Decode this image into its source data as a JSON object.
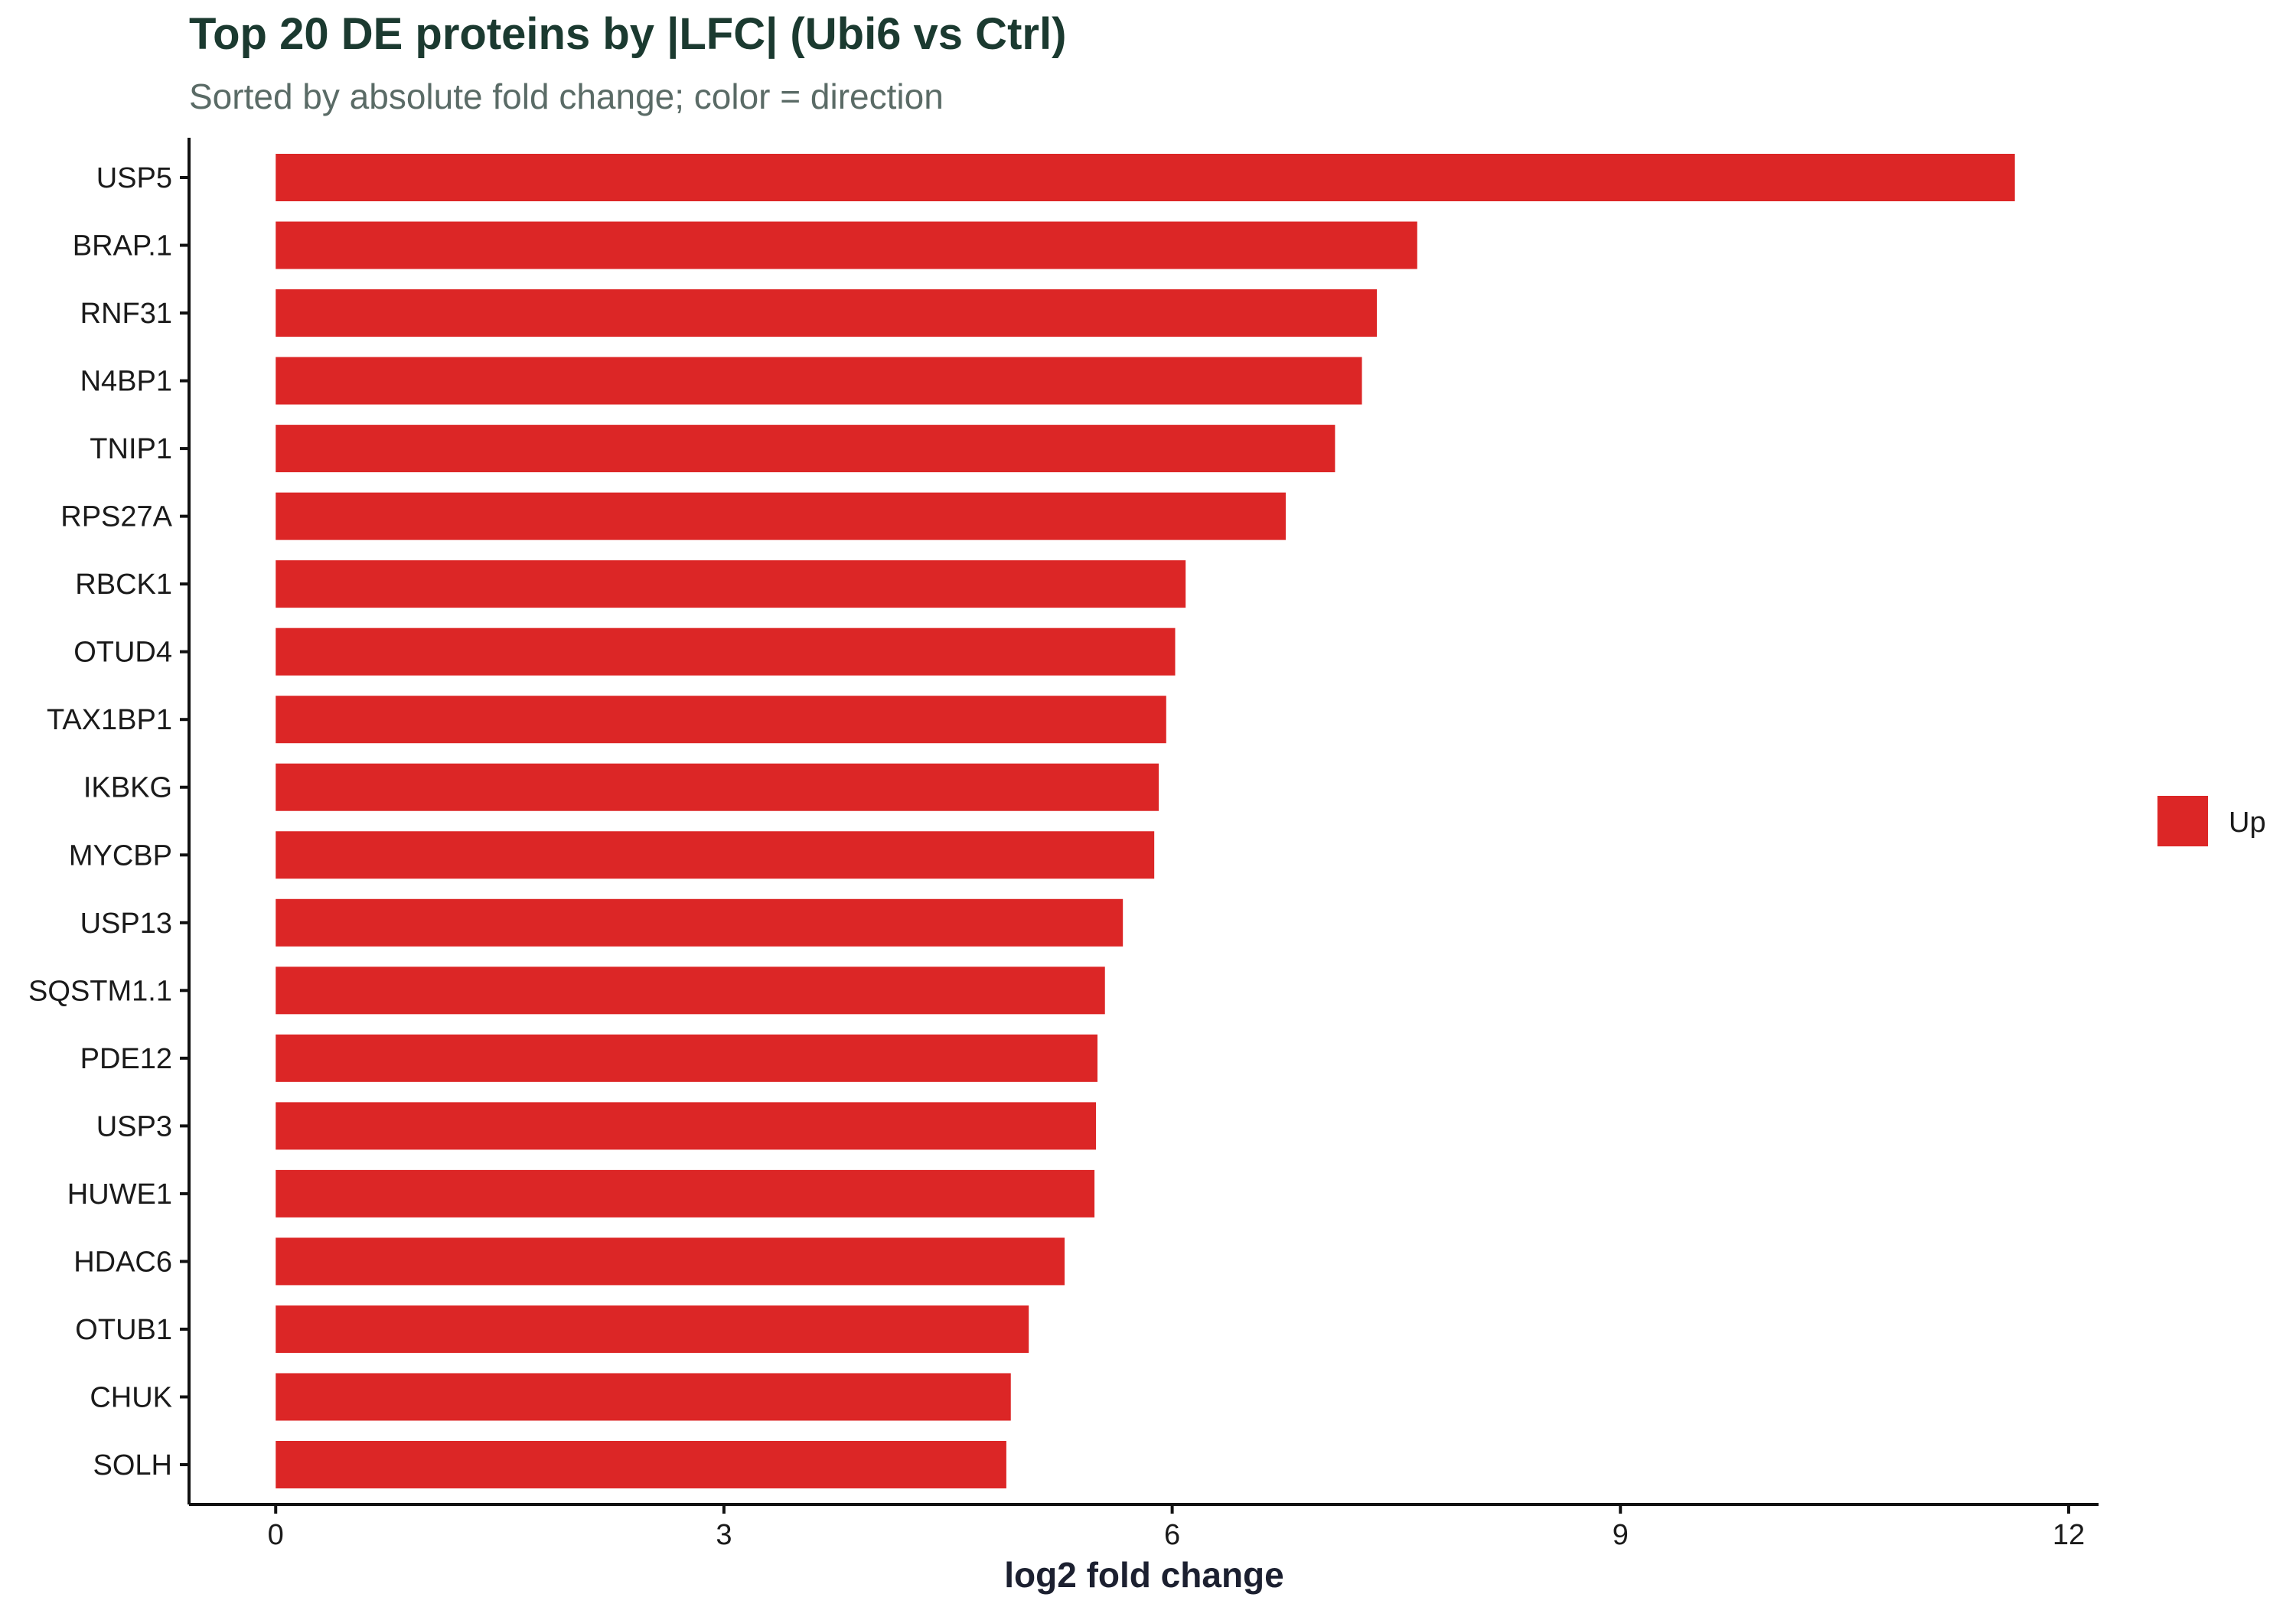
{
  "chart_data": {
    "type": "bar",
    "orientation": "horizontal",
    "title": "Top 20 DE proteins by |LFC| (Ubi6 vs Ctrl)",
    "subtitle": "Sorted by absolute fold change; color = direction",
    "xlabel": "log2 fold change",
    "ylabel": "",
    "xlim": [
      -0.58,
      12.2
    ],
    "xticks": [
      0,
      3,
      6,
      9,
      12
    ],
    "grid": false,
    "legend_position": "right",
    "categories": [
      "USP5",
      "BRAP.1",
      "RNF31",
      "N4BP1",
      "TNIP1",
      "RPS27A",
      "RBCK1",
      "OTUD4",
      "TAX1BP1",
      "IKBKG",
      "MYCBP",
      "USP13",
      "SQSTM1.1",
      "PDE12",
      "USP3",
      "HUWE1",
      "HDAC6",
      "OTUB1",
      "CHUK",
      "SOLH"
    ],
    "series": [
      {
        "name": "Up",
        "color": "#dc2626",
        "values": [
          11.64,
          7.64,
          7.37,
          7.27,
          7.09,
          6.76,
          6.09,
          6.02,
          5.96,
          5.91,
          5.88,
          5.67,
          5.55,
          5.5,
          5.49,
          5.48,
          5.28,
          5.04,
          4.92,
          4.89
        ]
      }
    ]
  },
  "colors": {
    "title": "#1b3a30",
    "subtitle": "#5a6b66",
    "axis_title": "#1c2030",
    "axis_line": "#111111"
  }
}
